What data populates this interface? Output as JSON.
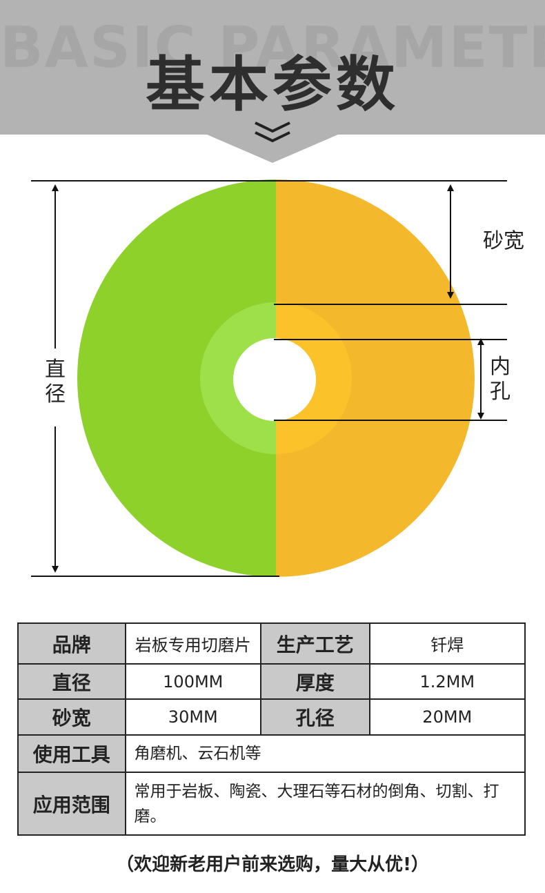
{
  "header": {
    "background_text": "BASIC PARAMETERS",
    "title": "基本参数"
  },
  "diagram": {
    "labels": {
      "sand_width": "砂宽",
      "inner_hole": "内孔",
      "diameter": "直径"
    }
  },
  "table": {
    "rows": [
      [
        "品牌",
        "岩板专用切磨片",
        "生产工艺",
        "钎焊"
      ],
      [
        "直径",
        "100MM",
        "厚度",
        "1.2MM"
      ],
      [
        "砂宽",
        "30MM",
        "孔径",
        "20MM"
      ],
      [
        "使用工具",
        "角磨机、云石机等"
      ],
      [
        "应用范围",
        "常用于岩板、陶瓷、大理石等石材的倒角、切割、打磨。"
      ]
    ]
  },
  "footer": "（欢迎新老用户前来选购，量大从优!）"
}
